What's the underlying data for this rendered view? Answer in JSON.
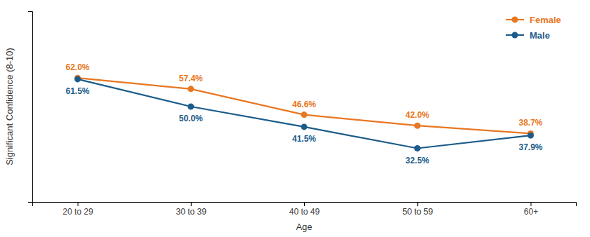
{
  "chart_data": {
    "type": "line",
    "xlabel": "Age",
    "ylabel": "Significant Confidence (8-10)",
    "categories": [
      "20 to 29",
      "30 to 39",
      "40 to 49",
      "50 to 59",
      "60+"
    ],
    "series": [
      {
        "name": "Female",
        "color": "#E87722",
        "marker": "circle",
        "values": [
          62.0,
          57.4,
          46.6,
          42.0,
          38.7
        ],
        "value_labels": [
          "62.0%",
          "57.4%",
          "46.6%",
          "42.0%",
          "38.7%"
        ]
      },
      {
        "name": "Male",
        "color": "#1B5C8A",
        "marker": "circle",
        "values": [
          61.5,
          50.0,
          41.5,
          32.5,
          37.9
        ],
        "value_labels": [
          "61.5%",
          "50.0%",
          "41.5%",
          "32.5%",
          "37.9%"
        ]
      }
    ],
    "ylim": [
      10,
      90
    ],
    "yticks": [],
    "tick_labels": "x",
    "grid": false,
    "legend": "upper right",
    "data_labels": true
  }
}
